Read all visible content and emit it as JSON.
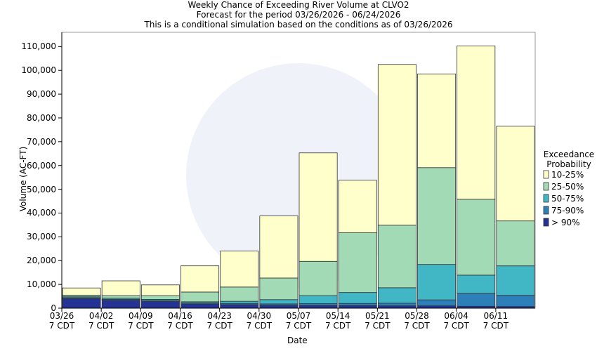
{
  "chart_data": {
    "type": "stacked_bar",
    "title": "Weekly Chance of Exceeding River Volume at CLVO2",
    "subtitle": "Forecast for the period 03/26/2026 - 06/24/2026",
    "note": "This is a conditional simulation based on the conditions as of 03/26/2026",
    "xlabel": "Date",
    "ylabel": "Volume (AC-FT)",
    "legend_title": "Exceedance\nProbability",
    "legend": "right",
    "categories": [
      "03/26\n7 CDT",
      "04/02\n7 CDT",
      "04/09\n7 CDT",
      "04/16\n7 CDT",
      "04/23\n7 CDT",
      "04/30\n7 CDT",
      "05/07\n7 CDT",
      "05/14\n7 CDT",
      "05/21\n7 CDT",
      "05/28\n7 CDT",
      "06/04\n7 CDT",
      "06/11\n7 CDT"
    ],
    "series": [
      {
        "name": "> 90%",
        "color": "#253494",
        "values": [
          4000,
          3300,
          2800,
          1800,
          1500,
          1200,
          1200,
          1100,
          1000,
          1000,
          800,
          700
        ]
      },
      {
        "name": "75-90%",
        "color": "#2c7fb8",
        "values": [
          400,
          400,
          400,
          400,
          500,
          600,
          700,
          900,
          1100,
          2500,
          5400,
          4700
        ]
      },
      {
        "name": "50-75%",
        "color": "#41b6c4",
        "values": [
          400,
          500,
          500,
          500,
          900,
          1800,
          3400,
          4600,
          6500,
          14900,
          7700,
          12400
        ]
      },
      {
        "name": "25-50%",
        "color": "#a1dab4",
        "values": [
          700,
          1100,
          1600,
          4100,
          6000,
          9100,
          14400,
          25100,
          26300,
          40700,
          31900,
          18900
        ]
      },
      {
        "name": "10-25%",
        "color": "#ffffcc",
        "values": [
          3000,
          6200,
          4500,
          11000,
          15100,
          26100,
          45600,
          22100,
          67600,
          39400,
          64500,
          39800
        ]
      }
    ],
    "ylim": [
      0,
      116000
    ],
    "yticks": [
      0,
      {
        "value": 10000,
        "label": "10,000"
      },
      {
        "value": 20000,
        "label": "20,000"
      },
      {
        "value": 30000,
        "label": "30,000"
      },
      {
        "value": 40000,
        "label": "40,000"
      },
      {
        "value": 50000,
        "label": "50,000"
      },
      {
        "value": 60000,
        "label": "60,000"
      },
      {
        "value": 70000,
        "label": "70,000"
      },
      {
        "value": 80000,
        "label": "80,000"
      },
      {
        "value": 90000,
        "label": "90,000"
      },
      {
        "value": 100000,
        "label": "100,000"
      },
      {
        "value": 110000,
        "label": "110,000"
      }
    ],
    "grid": false
  }
}
